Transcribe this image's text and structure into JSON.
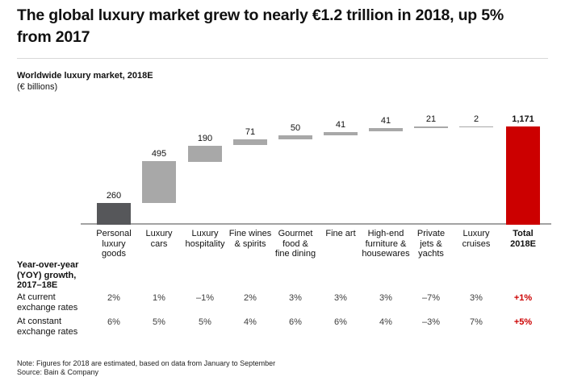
{
  "page": {
    "title": "The global luxury market grew to nearly €1.2 trillion in 2018, up 5%\nfrom 2017",
    "note": "Note: Figures for 2018 are estimated, based on data from January to September",
    "source": "Source: Bain & Company"
  },
  "chart_data": {
    "type": "bar",
    "subtype": "waterfall",
    "title": "Worldwide luxury market, 2018E",
    "subtitle": "(€ billions)",
    "categories": [
      "Personal luxury goods",
      "Luxury cars",
      "Luxury hospitality",
      "Fine wines & spirits",
      "Gourmet food & fine dining",
      "Fine art",
      "High-end furniture & housewares",
      "Private jets & yachts",
      "Luxury cruises",
      "Total 2018E"
    ],
    "category_labels": [
      "Personal\nluxury\ngoods",
      "Luxury\ncars",
      "Luxury\nhospitality",
      "Fine wines\n& spirits",
      "Gourmet\nfood &\nfine dining",
      "Fine art",
      "High-end\nfurniture &\nhousewares",
      "Private\njets &\nyachts",
      "Luxury\ncruises",
      "Total\n2018E"
    ],
    "values": [
      260,
      495,
      190,
      71,
      50,
      41,
      41,
      21,
      2,
      1171
    ],
    "value_labels": [
      "260",
      "495",
      "190",
      "71",
      "50",
      "41",
      "41",
      "21",
      "2",
      "1,171"
    ],
    "total_index": 9,
    "ylim": [
      0,
      1171
    ],
    "grid": false,
    "legend": false
  },
  "table": {
    "header": "Year-over-year\n(YOY) growth,\n2017–18E",
    "rows": [
      {
        "label": "At current\nexchange rates",
        "values": [
          "2%",
          "1%",
          "–1%",
          "2%",
          "3%",
          "3%",
          "3%",
          "–7%",
          "3%",
          "+1%"
        ]
      },
      {
        "label": "At constant\nexchange rates",
        "values": [
          "6%",
          "5%",
          "5%",
          "4%",
          "6%",
          "6%",
          "4%",
          "–3%",
          "7%",
          "+5%"
        ]
      }
    ]
  },
  "colors": {
    "first_bar": "#56575a",
    "middle_bar": "#a8a8a8",
    "total_bar": "#cc0000",
    "accent_red": "#cc0000",
    "axis_line": "#a3a3a3",
    "divider": "#d8d8d8"
  }
}
